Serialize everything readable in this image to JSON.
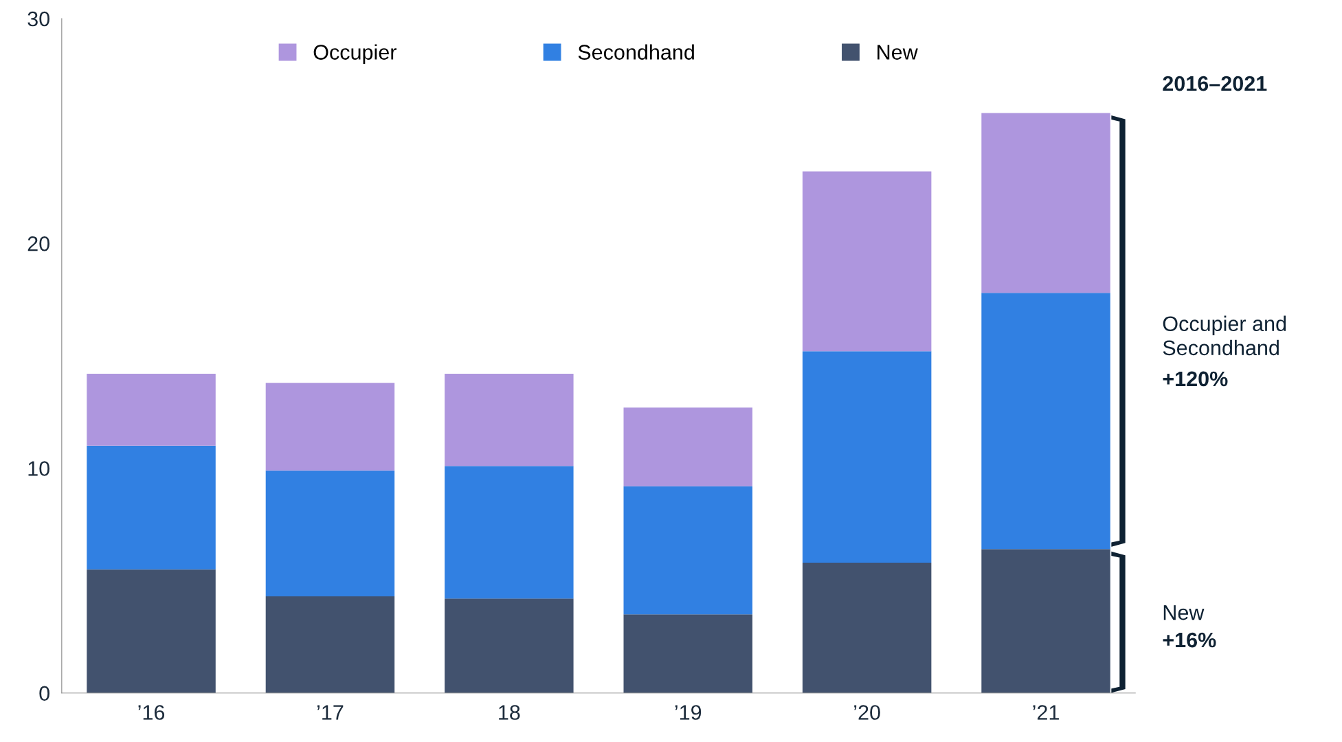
{
  "chart_data": {
    "type": "bar",
    "stacked": true,
    "categories": [
      "’16",
      "’17",
      "18",
      "’19",
      "’20",
      "’21"
    ],
    "series": [
      {
        "name": "New",
        "color": "#42526e",
        "values": [
          5.5,
          4.3,
          4.2,
          3.5,
          5.8,
          6.4
        ]
      },
      {
        "name": "Secondhand",
        "color": "#3180e2",
        "values": [
          5.5,
          5.6,
          5.9,
          5.7,
          9.4,
          11.4
        ]
      },
      {
        "name": "Occupier",
        "color": "#ae96de",
        "values": [
          3.2,
          3.9,
          4.1,
          3.5,
          8.0,
          8.0
        ]
      }
    ],
    "ylim": [
      0,
      30
    ],
    "yticks": [
      0,
      10,
      20,
      30
    ],
    "grid": false,
    "legend": "top",
    "annotations": [
      "2016–2021",
      "Occupier and\nSecondhand",
      "+120%",
      "New",
      "+16%"
    ]
  }
}
